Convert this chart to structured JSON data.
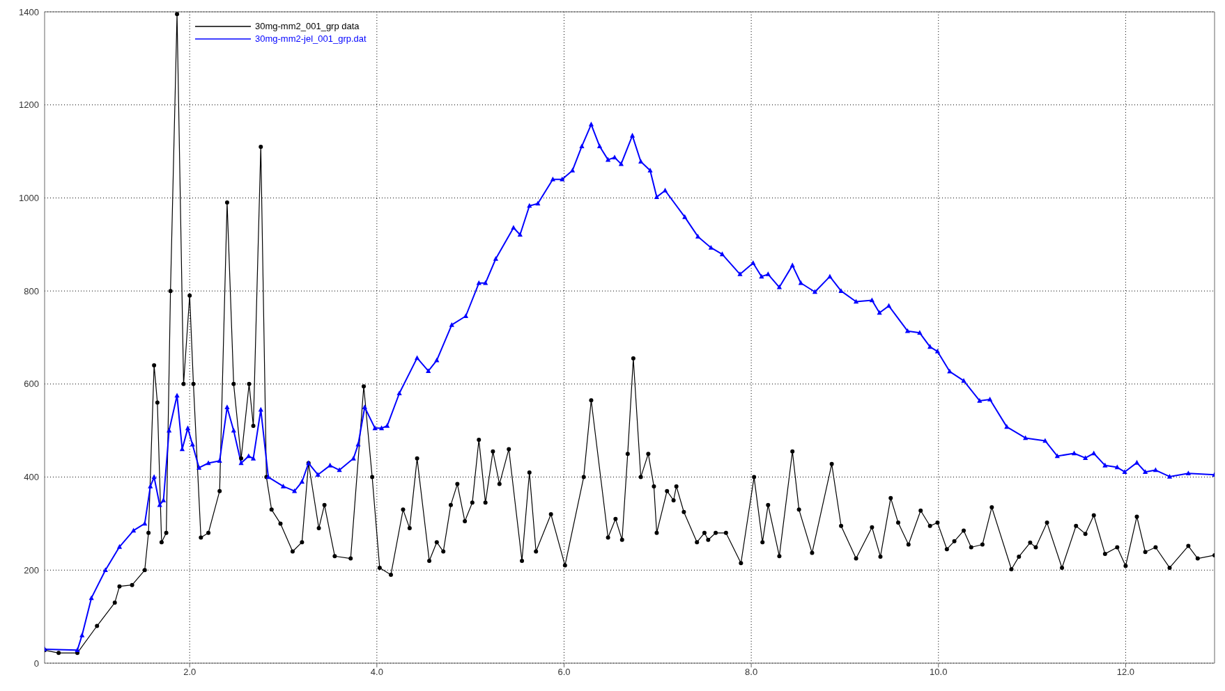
{
  "chart_data": {
    "type": "line",
    "xlim": [
      0.45,
      12.95
    ],
    "ylim": [
      0,
      1400
    ],
    "xticks": [
      {
        "value": 2,
        "label": "2.0"
      },
      {
        "value": 4,
        "label": "4.0"
      },
      {
        "value": 6,
        "label": "6.0"
      },
      {
        "value": 8,
        "label": "8.0"
      },
      {
        "value": 10,
        "label": "10.0"
      },
      {
        "value": 12,
        "label": "12.0"
      }
    ],
    "yticks": [
      0,
      200,
      400,
      600,
      800,
      1000,
      1200,
      1400
    ],
    "grid": true,
    "legend": "top left",
    "line_style": "solid",
    "series": [
      {
        "name": "30mg-mm2_001_grp data",
        "color": "#000000",
        "marker": "circle",
        "x": [
          0.45,
          0.6,
          0.8,
          1.01,
          1.2,
          1.25,
          1.385,
          1.52,
          1.56,
          1.62,
          1.655,
          1.7,
          1.75,
          1.795,
          1.865,
          1.935,
          2.0,
          2.04,
          2.12,
          2.2,
          2.32,
          2.4,
          2.47,
          2.55,
          2.635,
          2.68,
          2.76,
          2.82,
          2.875,
          2.97,
          3.1,
          3.2,
          3.27,
          3.38,
          3.44,
          3.55,
          3.72,
          3.86,
          3.95,
          4.03,
          4.15,
          4.28,
          4.35,
          4.43,
          4.56,
          4.64,
          4.71,
          4.79,
          4.86,
          4.94,
          5.02,
          5.09,
          5.16,
          5.24,
          5.31,
          5.41,
          5.55,
          5.63,
          5.7,
          5.86,
          6.01,
          6.21,
          6.29,
          6.47,
          6.55,
          6.62,
          6.68,
          6.74,
          6.82,
          6.9,
          6.96,
          6.99,
          7.1,
          7.17,
          7.2,
          7.28,
          7.42,
          7.5,
          7.54,
          7.62,
          7.73,
          7.89,
          8.03,
          8.12,
          8.18,
          8.3,
          8.44,
          8.51,
          8.65,
          8.86,
          8.96,
          9.12,
          9.29,
          9.38,
          9.49,
          9.57,
          9.68,
          9.81,
          9.91,
          9.99,
          10.09,
          10.17,
          10.27,
          10.35,
          10.47,
          10.57,
          10.78,
          10.86,
          10.98,
          11.04,
          11.16,
          11.32,
          11.47,
          11.57,
          11.66,
          11.78,
          11.91,
          12.0,
          12.12,
          12.21,
          12.32,
          12.47,
          12.67,
          12.77,
          12.95
        ],
        "values": [
          28,
          22,
          22,
          80,
          130,
          165,
          168,
          200,
          280,
          640,
          560,
          260,
          280,
          800,
          1395,
          600,
          790,
          600,
          270,
          280,
          370,
          990,
          600,
          440,
          600,
          510,
          1110,
          400,
          330,
          300,
          240,
          260,
          430,
          290,
          340,
          230,
          225,
          595,
          400,
          205,
          190,
          330,
          290,
          440,
          220,
          260,
          240,
          340,
          385,
          305,
          345,
          480,
          345,
          455,
          385,
          460,
          220,
          410,
          240,
          320,
          210,
          400,
          565,
          270,
          310,
          265,
          450,
          655,
          400,
          450,
          380,
          280,
          370,
          350,
          380,
          325,
          260,
          280,
          265,
          280,
          280,
          215,
          400,
          260,
          340,
          230,
          455,
          330,
          237,
          428,
          295,
          225,
          292,
          229,
          355,
          302,
          255,
          328,
          295,
          302,
          245,
          262,
          285,
          249,
          255,
          335,
          202,
          229,
          259,
          249,
          302,
          205,
          295,
          278,
          318,
          235,
          249,
          209,
          315,
          239,
          249,
          205,
          252,
          225,
          232
        ]
      },
      {
        "name": "30mg-mm2-jel_001_grp.dat",
        "color": "#0000ff",
        "marker": "triangle",
        "x": [
          0.45,
          0.8,
          0.85,
          0.95,
          1.1,
          1.25,
          1.4,
          1.52,
          1.58,
          1.62,
          1.68,
          1.72,
          1.78,
          1.865,
          1.92,
          1.98,
          2.03,
          2.1,
          2.2,
          2.32,
          2.4,
          2.47,
          2.55,
          2.63,
          2.68,
          2.76,
          2.84,
          3.0,
          3.12,
          3.2,
          3.27,
          3.37,
          3.5,
          3.6,
          3.75,
          3.8,
          3.87,
          3.98,
          4.05,
          4.11,
          4.24,
          4.43,
          4.55,
          4.64,
          4.8,
          4.95,
          5.09,
          5.16,
          5.27,
          5.46,
          5.53,
          5.63,
          5.72,
          5.88,
          5.98,
          6.09,
          6.19,
          6.29,
          6.38,
          6.47,
          6.54,
          6.61,
          6.73,
          6.82,
          6.92,
          6.99,
          7.08,
          7.29,
          7.43,
          7.57,
          7.69,
          7.88,
          8.02,
          8.11,
          8.18,
          8.3,
          8.44,
          8.53,
          8.68,
          8.84,
          8.96,
          9.12,
          9.29,
          9.37,
          9.47,
          9.67,
          9.8,
          9.91,
          9.99,
          10.12,
          10.27,
          10.44,
          10.55,
          10.73,
          10.93,
          11.14,
          11.27,
          11.45,
          11.57,
          11.66,
          11.78,
          11.91,
          11.99,
          12.12,
          12.21,
          12.32,
          12.47,
          12.67,
          12.95
        ],
        "values": [
          30,
          28,
          60,
          140,
          200,
          250,
          285,
          300,
          380,
          400,
          340,
          350,
          500,
          575,
          460,
          505,
          470,
          420,
          430,
          435,
          550,
          500,
          430,
          445,
          440,
          545,
          400,
          380,
          370,
          390,
          430,
          405,
          425,
          415,
          440,
          470,
          550,
          505,
          505,
          510,
          580,
          656,
          628,
          651,
          727,
          746,
          817,
          817,
          869,
          936,
          921,
          983,
          988,
          1040,
          1040,
          1059,
          1111,
          1158,
          1111,
          1082,
          1087,
          1073,
          1134,
          1078,
          1059,
          1002,
          1016,
          959,
          917,
          893,
          879,
          836,
          860,
          831,
          836,
          808,
          855,
          817,
          798,
          831,
          800,
          777,
          780,
          753,
          768,
          714,
          710,
          680,
          670,
          627,
          607,
          564,
          567,
          508,
          484,
          478,
          445,
          451,
          441,
          451,
          425,
          421,
          411,
          431,
          411,
          415,
          401,
          408,
          405
        ]
      }
    ]
  }
}
